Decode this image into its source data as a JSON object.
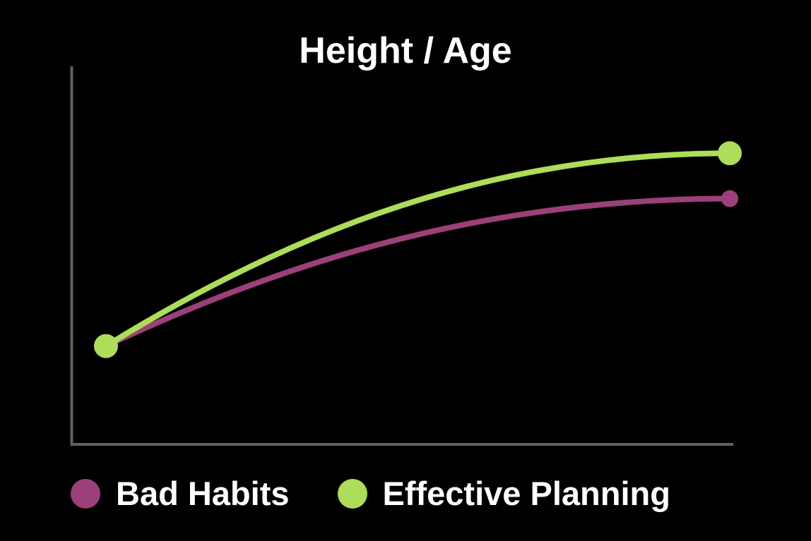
{
  "chart_data": {
    "type": "line",
    "title": "Height / Age",
    "xlabel": "",
    "ylabel": "",
    "grid": false,
    "legend_position": "bottom",
    "series": [
      {
        "name": "Bad Habits",
        "color": "#9B4078",
        "curve": "concave",
        "points": [
          {
            "x": 0,
            "y": 0.26
          },
          {
            "x": 1,
            "y": 0.65
          }
        ]
      },
      {
        "name": "Effective Planning",
        "color": "#AEDD5A",
        "curve": "concave",
        "points": [
          {
            "x": 0,
            "y": 0.26
          },
          {
            "x": 1,
            "y": 0.77
          }
        ]
      }
    ],
    "axis_color": "#606060"
  }
}
